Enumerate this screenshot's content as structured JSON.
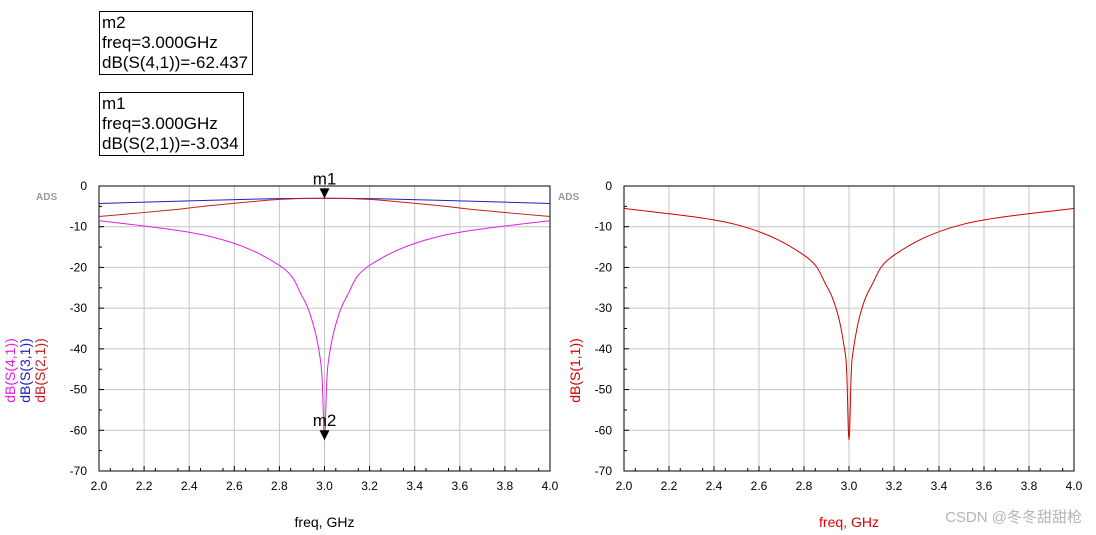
{
  "markers": [
    {
      "name": "m2",
      "freq": "freq=3.000GHz",
      "value": "dB(S(4,1))=-62.437"
    },
    {
      "name": "m1",
      "freq": "freq=3.000GHz",
      "value": "dB(S(2,1))=-3.034"
    }
  ],
  "watermark": "CSDN @冬冬甜甜枪",
  "chart_data": [
    {
      "type": "line",
      "ads_label": "ADS",
      "xlabel": "freq, GHz",
      "xlabel_color": "#000000",
      "xlim": [
        2.0,
        4.0
      ],
      "ylim": [
        -70,
        0
      ],
      "xticks": [
        "2.0",
        "2.2",
        "2.4",
        "2.6",
        "2.8",
        "3.0",
        "3.2",
        "3.4",
        "3.6",
        "3.8",
        "4.0"
      ],
      "yticks": [
        "0",
        "-10",
        "-20",
        "-30",
        "-40",
        "-50",
        "-60",
        "-70"
      ],
      "grid": true,
      "series": [
        {
          "name": "dB(S(4,1))",
          "color": "#e020e0",
          "x": [
            2.0,
            2.5,
            2.8,
            2.9,
            2.95,
            2.98,
            2.99,
            3.0,
            3.01,
            3.02,
            3.05,
            3.1,
            3.2,
            3.5,
            4.0
          ],
          "values": [
            -8.5,
            -12.5,
            -19.5,
            -27,
            -34,
            -42,
            -48,
            -62.437,
            -48,
            -42,
            -34,
            -27,
            -19.5,
            -12.5,
            -8.5
          ]
        },
        {
          "name": "dB(S(3,1))",
          "color": "#2020c0",
          "x": [
            2.0,
            2.5,
            2.8,
            3.0,
            3.2,
            3.5,
            4.0
          ],
          "values": [
            -4.3,
            -3.5,
            -3.1,
            -3.0,
            -3.1,
            -3.5,
            -4.3
          ]
        },
        {
          "name": "dB(S(2,1))",
          "color": "#c02020",
          "x": [
            2.0,
            2.3,
            2.5,
            2.8,
            3.0,
            3.2,
            3.5,
            3.7,
            4.0
          ],
          "values": [
            -7.5,
            -6.0,
            -4.8,
            -3.3,
            -3.034,
            -3.3,
            -4.8,
            -6.0,
            -7.5
          ]
        }
      ],
      "markers": [
        {
          "name": "m1",
          "x": 3.0,
          "y": -3.034,
          "label_pos": "above"
        },
        {
          "name": "m2",
          "x": 3.0,
          "y": -62.437,
          "label_pos": "above"
        }
      ]
    },
    {
      "type": "line",
      "ads_label": "ADS",
      "xlabel": "freq, GHz",
      "xlabel_color": "#e00000",
      "xlim": [
        2.0,
        4.0
      ],
      "ylim": [
        -70,
        0
      ],
      "xticks": [
        "2.0",
        "2.2",
        "2.4",
        "2.6",
        "2.8",
        "3.0",
        "3.2",
        "3.4",
        "3.6",
        "3.8",
        "4.0"
      ],
      "yticks": [
        "0",
        "-10",
        "-20",
        "-30",
        "-40",
        "-50",
        "-60",
        "-70"
      ],
      "grid": true,
      "series": [
        {
          "name": "dB(S(1,1))",
          "color": "#d00000",
          "x": [
            2.0,
            2.5,
            2.8,
            2.9,
            2.95,
            2.98,
            2.99,
            3.0,
            3.01,
            3.02,
            3.05,
            3.1,
            3.2,
            3.5,
            4.0
          ],
          "values": [
            -5.5,
            -9.5,
            -17,
            -24.5,
            -31.5,
            -40,
            -46,
            -62.4,
            -46,
            -40,
            -31.5,
            -24.5,
            -17,
            -9.5,
            -5.5
          ]
        }
      ],
      "markers": []
    }
  ]
}
